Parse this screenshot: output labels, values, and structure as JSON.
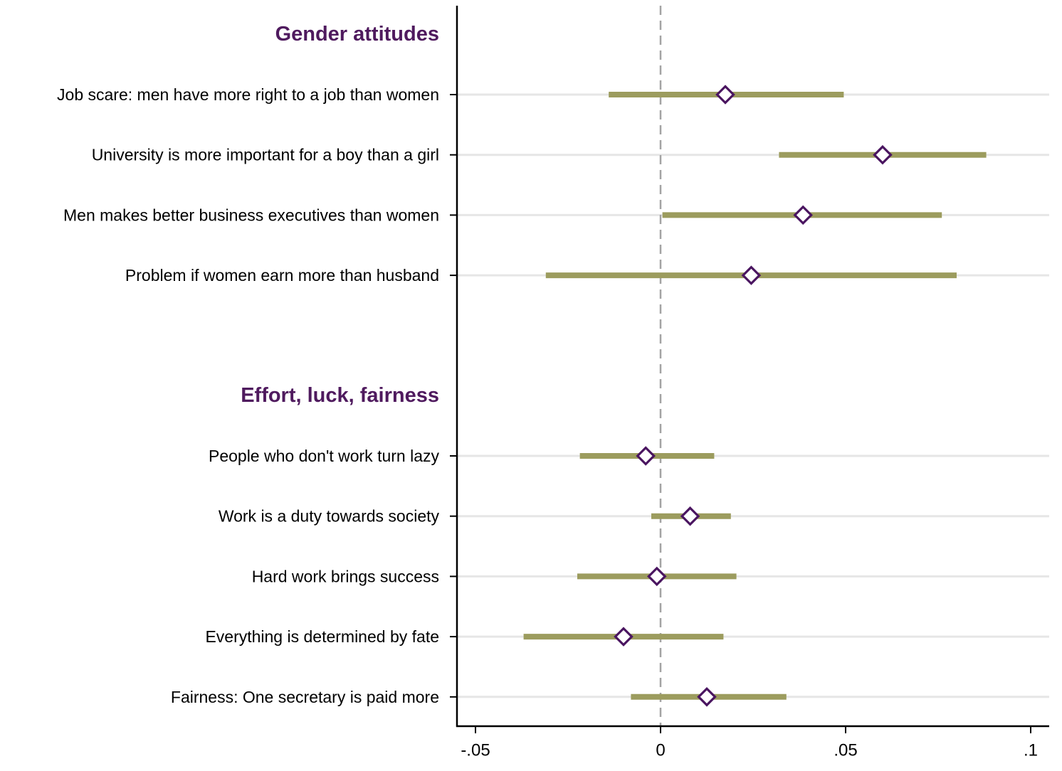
{
  "colors": {
    "heading": "#4f1a5e",
    "ci_bar": "#9c9c5e",
    "marker": "#4a1560",
    "zero_line": "#a3a3a3",
    "row_grid": "#e6e6e6",
    "axis": "#000000"
  },
  "chart_data": {
    "type": "coefficient-plot",
    "orientation": "horizontal",
    "xlim": [
      -0.05,
      0.1
    ],
    "x_ticks": [
      -0.05,
      0,
      0.05,
      0.1
    ],
    "x_tick_labels": [
      "-.05",
      "0",
      ".05",
      ".1"
    ],
    "reference_line": {
      "x": 0,
      "style": "dashed"
    },
    "grid": "horizontal lines at each row",
    "marker": "hollow diamond",
    "groups": [
      {
        "heading": "Gender attitudes",
        "items": [
          {
            "label": "Job scare: men have more right to a job than women",
            "estimate": 0.0175,
            "ci_low": -0.014,
            "ci_high": 0.0495
          },
          {
            "label": "University is more important for a boy than a girl",
            "estimate": 0.06,
            "ci_low": 0.032,
            "ci_high": 0.088
          },
          {
            "label": "Men makes better business executives than women",
            "estimate": 0.0385,
            "ci_low": 0.0005,
            "ci_high": 0.076
          },
          {
            "label": "Problem if women earn more than husband",
            "estimate": 0.0245,
            "ci_low": -0.031,
            "ci_high": 0.08
          }
        ]
      },
      {
        "heading": "Effort, luck, fairness",
        "items": [
          {
            "label": "People who don't work turn lazy",
            "estimate": -0.004,
            "ci_low": -0.0218,
            "ci_high": 0.0145
          },
          {
            "label": "Work is a duty towards society",
            "estimate": 0.008,
            "ci_low": -0.0025,
            "ci_high": 0.019
          },
          {
            "label": "Hard work brings success",
            "estimate": -0.001,
            "ci_low": -0.0225,
            "ci_high": 0.0205
          },
          {
            "label": "Everything is determined by fate",
            "estimate": -0.01,
            "ci_low": -0.037,
            "ci_high": 0.017
          },
          {
            "label": "Fairness: One secretary is paid more",
            "estimate": 0.0125,
            "ci_low": -0.008,
            "ci_high": 0.034
          }
        ]
      }
    ]
  }
}
